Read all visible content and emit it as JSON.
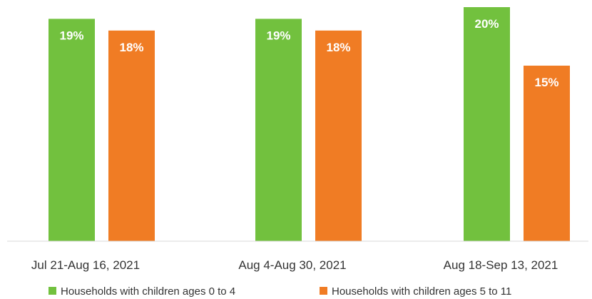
{
  "chart_data": {
    "type": "bar",
    "categories": [
      "Jul 21-Aug 16, 2021",
      "Aug 4-Aug 30, 2021",
      "Aug 18-Sep 13, 2021"
    ],
    "series": [
      {
        "name": "Households with children ages 0 to 4",
        "values": [
          19,
          19,
          20
        ],
        "color": "#72c13e"
      },
      {
        "name": "Households with children ages 5 to 11",
        "values": [
          18,
          18,
          15
        ],
        "color": "#f07c24"
      }
    ],
    "value_suffix": "%",
    "ylim": [
      0,
      20.5
    ],
    "grid": false,
    "legend_position": "bottom"
  }
}
